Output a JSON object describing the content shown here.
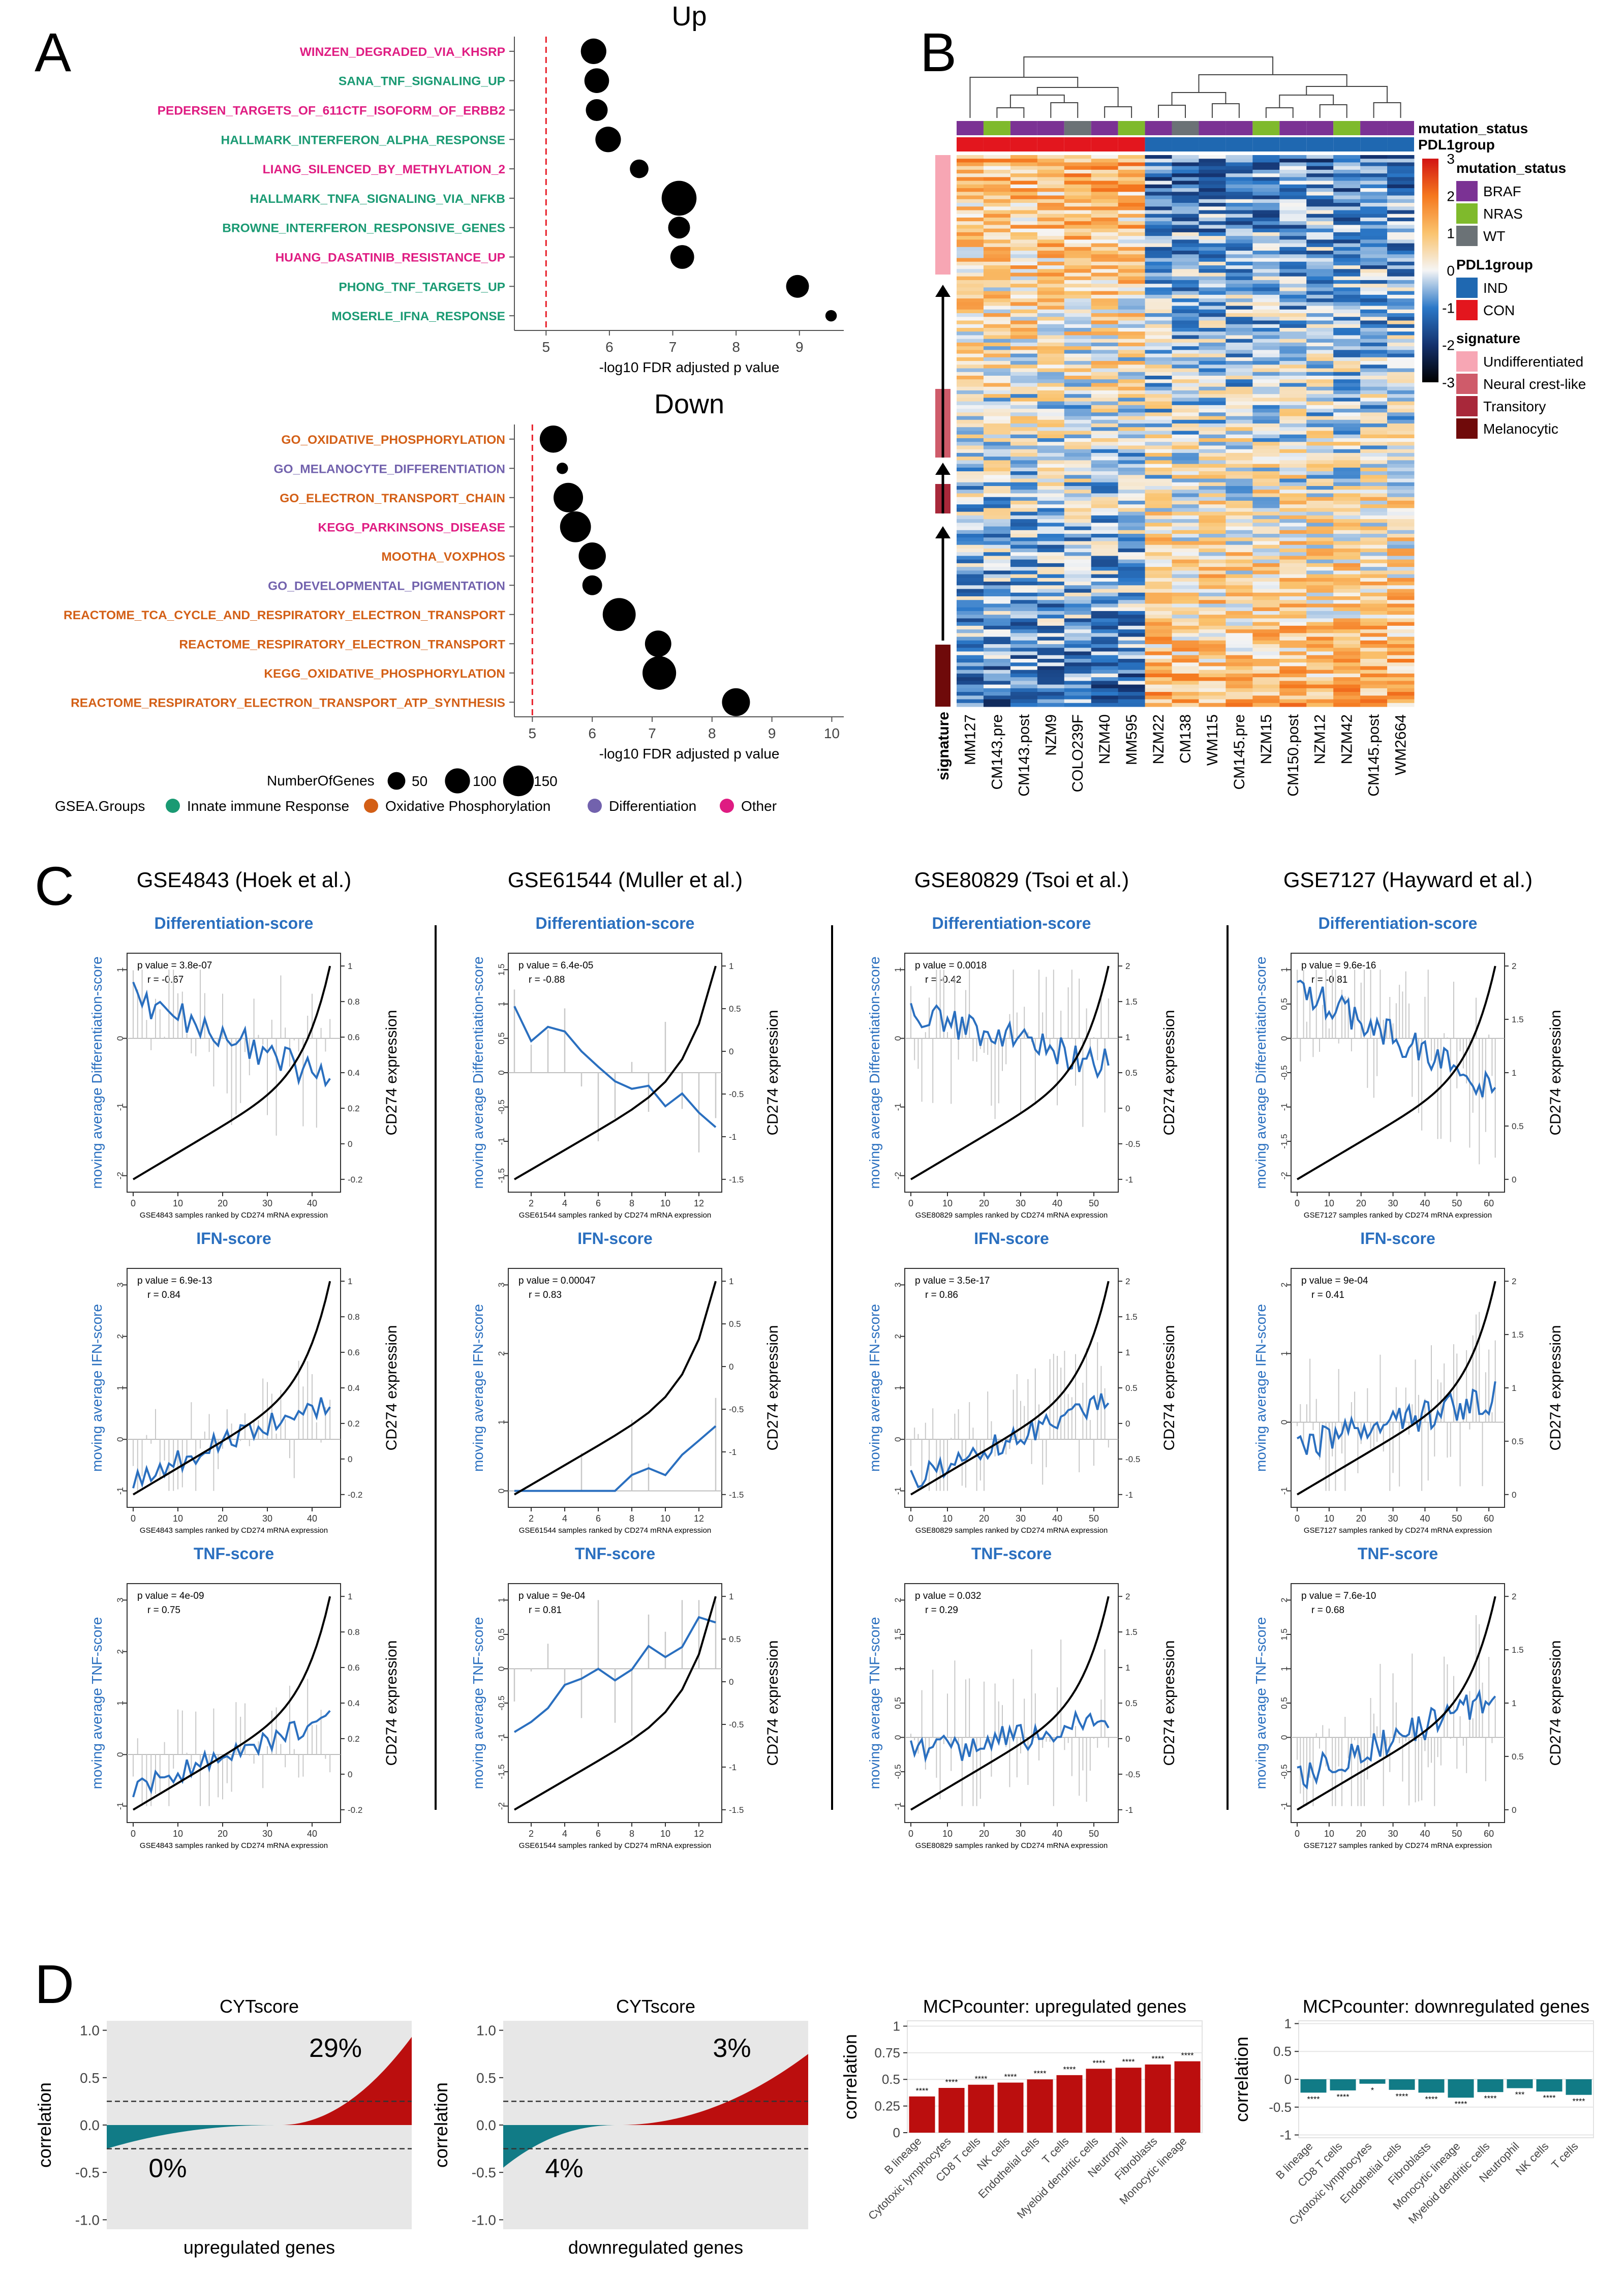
{
  "figure": {
    "panel_labels": [
      "A",
      "B",
      "C",
      "D"
    ]
  },
  "panel_a": {
    "up": {
      "title": "Up",
      "xlabel": "-log10 FDR adjusted p value",
      "threshold": 5,
      "xlim": [
        4.5,
        9.7
      ],
      "ticks": [
        5,
        6,
        7,
        8,
        9
      ],
      "terms": [
        {
          "label": "WINZEN_DEGRADED_VIA_KHSRP",
          "x": 5.75,
          "n": 75,
          "group": "Other"
        },
        {
          "label": "SANA_TNF_SIGNALING_UP",
          "x": 5.8,
          "n": 70,
          "group": "Innate immune Response"
        },
        {
          "label": "PEDERSEN_TARGETS_OF_611CTF_ISOFORM_OF_ERBB2",
          "x": 5.8,
          "n": 55,
          "group": "Other"
        },
        {
          "label": "HALLMARK_INTERFERON_ALPHA_RESPONSE",
          "x": 5.98,
          "n": 75,
          "group": "Innate immune Response"
        },
        {
          "label": "LIANG_SILENCED_BY_METHYLATION_2",
          "x": 6.47,
          "n": 40,
          "group": "Other"
        },
        {
          "label": "HALLMARK_TNFA_SIGNALING_VIA_NFKB",
          "x": 7.1,
          "n": 140,
          "group": "Innate immune Response"
        },
        {
          "label": "BROWNE_INTERFERON_RESPONSIVE_GENES",
          "x": 7.1,
          "n": 55,
          "group": "Innate immune Response"
        },
        {
          "label": "HUANG_DASATINIB_RESISTANCE_UP",
          "x": 7.15,
          "n": 65,
          "group": "Other"
        },
        {
          "label": "PHONG_TNF_TARGETS_UP",
          "x": 8.97,
          "n": 60,
          "group": "Innate immune Response"
        },
        {
          "label": "MOSERLE_IFNA_RESPONSE",
          "x": 9.5,
          "n": 15,
          "group": "Innate immune Response"
        }
      ]
    },
    "down": {
      "title": "Down",
      "xlabel": "-log10 FDR adjusted p value",
      "threshold": 5,
      "xlim": [
        4.7,
        10.2
      ],
      "ticks": [
        5,
        6,
        7,
        8,
        9,
        10
      ],
      "terms": [
        {
          "label": "GO_OXIDATIVE_PHOSPHORYLATION",
          "x": 5.35,
          "n": 85,
          "group": "Oxidative Phosphorylation"
        },
        {
          "label": "GO_MELANOCYTE_DIFFERENTIATION",
          "x": 5.5,
          "n": 15,
          "group": "Differentiation"
        },
        {
          "label": "GO_ELECTRON_TRANSPORT_CHAIN",
          "x": 5.6,
          "n": 100,
          "group": "Oxidative Phosphorylation"
        },
        {
          "label": "KEGG_PARKINSONS_DISEASE",
          "x": 5.72,
          "n": 110,
          "group": "Other"
        },
        {
          "label": "MOOTHA_VOXPHOS",
          "x": 6.0,
          "n": 85,
          "group": "Oxidative Phosphorylation"
        },
        {
          "label": "GO_DEVELOPMENTAL_PIGMENTATION",
          "x": 6.0,
          "n": 45,
          "group": "Differentiation"
        },
        {
          "label": "REACTOME_TCA_CYCLE_AND_RESPIRATORY_ELECTRON_TRANSPORT",
          "x": 6.45,
          "n": 125,
          "group": "Oxidative Phosphorylation"
        },
        {
          "label": "REACTOME_RESPIRATORY_ELECTRON_TRANSPORT",
          "x": 7.1,
          "n": 80,
          "group": "Oxidative Phosphorylation"
        },
        {
          "label": "KEGG_OXIDATIVE_PHOSPHORYLATION",
          "x": 7.12,
          "n": 130,
          "group": "Oxidative Phosphorylation"
        },
        {
          "label": "REACTOME_RESPIRATORY_ELECTRON_TRANSPORT_ATP_SYNTHESIS",
          "x": 8.4,
          "n": 90,
          "group": "Oxidative Phosphorylation"
        }
      ]
    },
    "size_legend": {
      "title": "NumberOfGenes",
      "sizes": [
        50,
        100,
        150
      ]
    },
    "group_legend": {
      "title": "GSEA.Groups",
      "groups": [
        {
          "name": "Innate immune Response",
          "color": "#1a9a73"
        },
        {
          "name": "Oxidative Phosphorylation",
          "color": "#d35f16"
        },
        {
          "name": "Differentiation",
          "color": "#7262ad"
        },
        {
          "name": "Other",
          "color": "#df1c82"
        }
      ]
    }
  },
  "panel_b": {
    "samples": [
      "MM127",
      "CM143.pre",
      "CM143.post",
      "NZM9",
      "COLO239F",
      "NZM40",
      "MM595",
      "NZM22",
      "CM138",
      "WM115",
      "CM145.pre",
      "NZM15",
      "CM150.post",
      "NZM12",
      "NZM42",
      "CM145.post",
      "WM2664"
    ],
    "mutation_status_row": [
      "BRAF",
      "NRAS",
      "BRAF",
      "BRAF",
      "WT",
      "BRAF",
      "NRAS",
      "BRAF",
      "WT",
      "BRAF",
      "BRAF",
      "NRAS",
      "BRAF",
      "BRAF",
      "NRAS",
      "BRAF",
      "BRAF"
    ],
    "pdl1group_row": [
      "CON",
      "CON",
      "CON",
      "CON",
      "CON",
      "CON",
      "CON",
      "IND",
      "IND",
      "IND",
      "IND",
      "IND",
      "IND",
      "IND",
      "IND",
      "IND",
      "IND"
    ],
    "row_annotation_labels": [
      "mutation_status",
      "PDL1group"
    ],
    "signature_axis_label": "signature",
    "colorbar": {
      "ticks": [
        3,
        2,
        1,
        0,
        -1,
        -2,
        -3
      ]
    },
    "legend": {
      "mutation_status": {
        "title": "mutation_status",
        "items": [
          {
            "name": "BRAF",
            "color": "#7b3294"
          },
          {
            "name": "NRAS",
            "color": "#7fba2c"
          },
          {
            "name": "WT",
            "color": "#6b7276"
          }
        ]
      },
      "pdl1group": {
        "title": "PDL1group",
        "items": [
          {
            "name": "IND",
            "color": "#1f68b1"
          },
          {
            "name": "CON",
            "color": "#e3161e"
          }
        ]
      },
      "signature": {
        "title": "signature",
        "items": [
          {
            "name": "Undifferentiated",
            "color": "#f7a6b4"
          },
          {
            "name": "Neural crest-like",
            "color": "#cf5b6a"
          },
          {
            "name": "Transitory",
            "color": "#a8283a"
          },
          {
            "name": "Melanocytic",
            "color": "#6f0a0a"
          }
        ]
      }
    }
  },
  "panel_c": {
    "row_titles": [
      "Differentiation-score",
      "IFN-score",
      "TNF-score"
    ],
    "right_ylabel": "CD274 expression",
    "datasets": [
      {
        "title": "GSE4843 (Hoek et al.)",
        "n": 45,
        "xticks": [
          0,
          10,
          20,
          30,
          40
        ],
        "xlabel": "GSE4843 samples ranked by CD274 mRNA expression",
        "right_ticks": [
          -0.2,
          0.0,
          0.2,
          0.4,
          0.6,
          0.8,
          1.0
        ],
        "panels": [
          {
            "ylabel": "moving average Differentiation-score",
            "p": "p value = 3.8e-07",
            "r": "r = -0.67",
            "yticks": [
              -2,
              -1,
              0,
              1
            ]
          },
          {
            "ylabel": "moving average IFN-score",
            "p": "p value = 6.9e-13",
            "r": "r = 0.84",
            "yticks": [
              -1,
              0,
              1,
              2,
              3
            ]
          },
          {
            "ylabel": "moving average TNF-score",
            "p": "p value = 4e-09",
            "r": "r = 0.75",
            "yticks": [
              -1,
              0,
              1,
              2,
              3
            ]
          }
        ]
      },
      {
        "title": "GSE61544 (Muller et al.)",
        "n": 13,
        "xticks": [
          2,
          4,
          6,
          8,
          10,
          12
        ],
        "xlabel": "GSE61544 samples ranked by CD274 mRNA expression",
        "right_ticks": [
          -1.5,
          -1.0,
          -0.5,
          0.0,
          0.5,
          1.0
        ],
        "panels": [
          {
            "ylabel": "moving average Differentiation-score",
            "p": "p value = 6.4e-05",
            "r": "r = -0.88",
            "yticks": [
              -1.5,
              -1.0,
              -0.5,
              0.0,
              0.5,
              1.0,
              1.5
            ]
          },
          {
            "ylabel": "moving average IFN-score",
            "p": "p value = 0.00047",
            "r": "r = 0.83",
            "yticks": [
              0,
              1,
              2,
              3
            ]
          },
          {
            "ylabel": "moving average TNF-score",
            "p": "p value = 9e-04",
            "r": "r = 0.81",
            "yticks": [
              -2.0,
              -1.5,
              -1.0,
              -0.5,
              0.0,
              0.5,
              1.0
            ]
          }
        ]
      },
      {
        "title": "GSE80829 (Tsoi et al.)",
        "n": 55,
        "xticks": [
          0,
          10,
          20,
          30,
          40,
          50
        ],
        "xlabel": "GSE80829 samples ranked by CD274 mRNA expression",
        "right_ticks": [
          -1.0,
          -0.5,
          0.0,
          0.5,
          1.0,
          1.5,
          2.0
        ],
        "panels": [
          {
            "ylabel": "moving average Differentiation-score",
            "p": "p value = 0.0018",
            "r": "r = -0.42",
            "yticks": [
              -2,
              -1,
              0,
              1
            ]
          },
          {
            "ylabel": "moving average IFN-score",
            "p": "p value = 3.5e-17",
            "r": "r = 0.86",
            "yticks": [
              -1,
              0,
              1,
              2,
              3
            ]
          },
          {
            "ylabel": "moving average TNF-score",
            "p": "p value = 0.032",
            "r": "r = 0.29",
            "yticks": [
              -1.0,
              -0.5,
              0.0,
              0.5,
              1.0,
              1.5,
              2.0
            ]
          }
        ]
      },
      {
        "title": "GSE7127 (Hayward et al.)",
        "n": 63,
        "xticks": [
          0,
          10,
          20,
          30,
          40,
          50,
          60
        ],
        "xlabel": "GSE7127 samples ranked by CD274 mRNA expression",
        "right_ticks": [
          0.0,
          0.5,
          1.0,
          1.5,
          2.0
        ],
        "panels": [
          {
            "ylabel": "moving average Differentiation-score",
            "p": "p value = 9.6e-16",
            "r": "r = -0.81",
            "yticks": [
              -2.0,
              -1.5,
              -1.0,
              -0.5,
              0.0,
              0.5,
              1.0
            ]
          },
          {
            "ylabel": "moving average IFN-score",
            "p": "p value = 9e-04",
            "r": "r = 0.41",
            "yticks": [
              -1,
              0,
              1,
              2
            ]
          },
          {
            "ylabel": "moving average TNF-score",
            "p": "p value = 7.6e-10",
            "r": "r = 0.68",
            "yticks": [
              -1.0,
              -0.5,
              0.0,
              0.5,
              1.0,
              1.5,
              2.0
            ]
          }
        ]
      }
    ]
  },
  "chart_data": [
    {
      "type": "area",
      "title": "CYTscore",
      "xlabel": "upregulated genes",
      "ylabel": "correlation",
      "ylim": [
        -1.1,
        1.1
      ],
      "yticks": [
        -1.0,
        -0.5,
        0.0,
        0.5,
        1.0
      ],
      "thresholds": [
        0.25,
        -0.25
      ],
      "range": [
        -0.25,
        0.93
      ],
      "pct_above": "29%",
      "pct_below": "0%",
      "fraction_positive": 0.43
    },
    {
      "type": "area",
      "title": "CYTscore",
      "xlabel": "downregulated genes",
      "ylabel": "correlation",
      "ylim": [
        -1.1,
        1.1
      ],
      "yticks": [
        -1.0,
        -0.5,
        0.0,
        0.5,
        1.0
      ],
      "thresholds": [
        0.25,
        -0.25
      ],
      "range": [
        -0.45,
        0.75
      ],
      "pct_above": "3%",
      "pct_below": "4%",
      "fraction_positive": 0.62
    },
    {
      "type": "bar",
      "title": "MCPcounter: upregulated genes",
      "ylabel": "correlation",
      "ylim": [
        0,
        1.05
      ],
      "yticks": [
        0.0,
        0.25,
        0.5,
        0.75,
        1.0
      ],
      "categories": [
        "B lineage",
        "Cytotoxic lymphocytes",
        "CD8 T cells",
        "NK cells",
        "Endothelial cells",
        "T cells",
        "Myeloid dendritic cells",
        "Neutrophil",
        "Fibroblasts",
        "Monocytic lineage"
      ],
      "values": [
        0.34,
        0.42,
        0.45,
        0.47,
        0.5,
        0.54,
        0.6,
        0.61,
        0.64,
        0.67
      ],
      "signif": [
        "****",
        "****",
        "****",
        "****",
        "****",
        "****",
        "****",
        "****",
        "****",
        "****"
      ],
      "color": "#bb0e0e"
    },
    {
      "type": "bar",
      "title": "MCPcounter: downregulated genes",
      "ylabel": "correlation",
      "ylim": [
        -1.05,
        1.05
      ],
      "yticks": [
        -1.0,
        -0.5,
        0.0,
        0.5,
        1.0
      ],
      "categories": [
        "B lineage",
        "CD8 T cells",
        "Cytotoxic lymphocytes",
        "Endothelial cells",
        "Fibroblasts",
        "Monocytic lineage",
        "Myeloid dendritic cells",
        "Neutrophil",
        "NK cells",
        "T cells"
      ],
      "values": [
        -0.24,
        -0.2,
        -0.08,
        -0.19,
        -0.24,
        -0.33,
        -0.23,
        -0.16,
        -0.22,
        -0.28
      ],
      "signif": [
        "****",
        "****",
        "*",
        "****",
        "****",
        "****",
        "****",
        "***",
        "****",
        "****"
      ],
      "color": "#117b86"
    }
  ]
}
